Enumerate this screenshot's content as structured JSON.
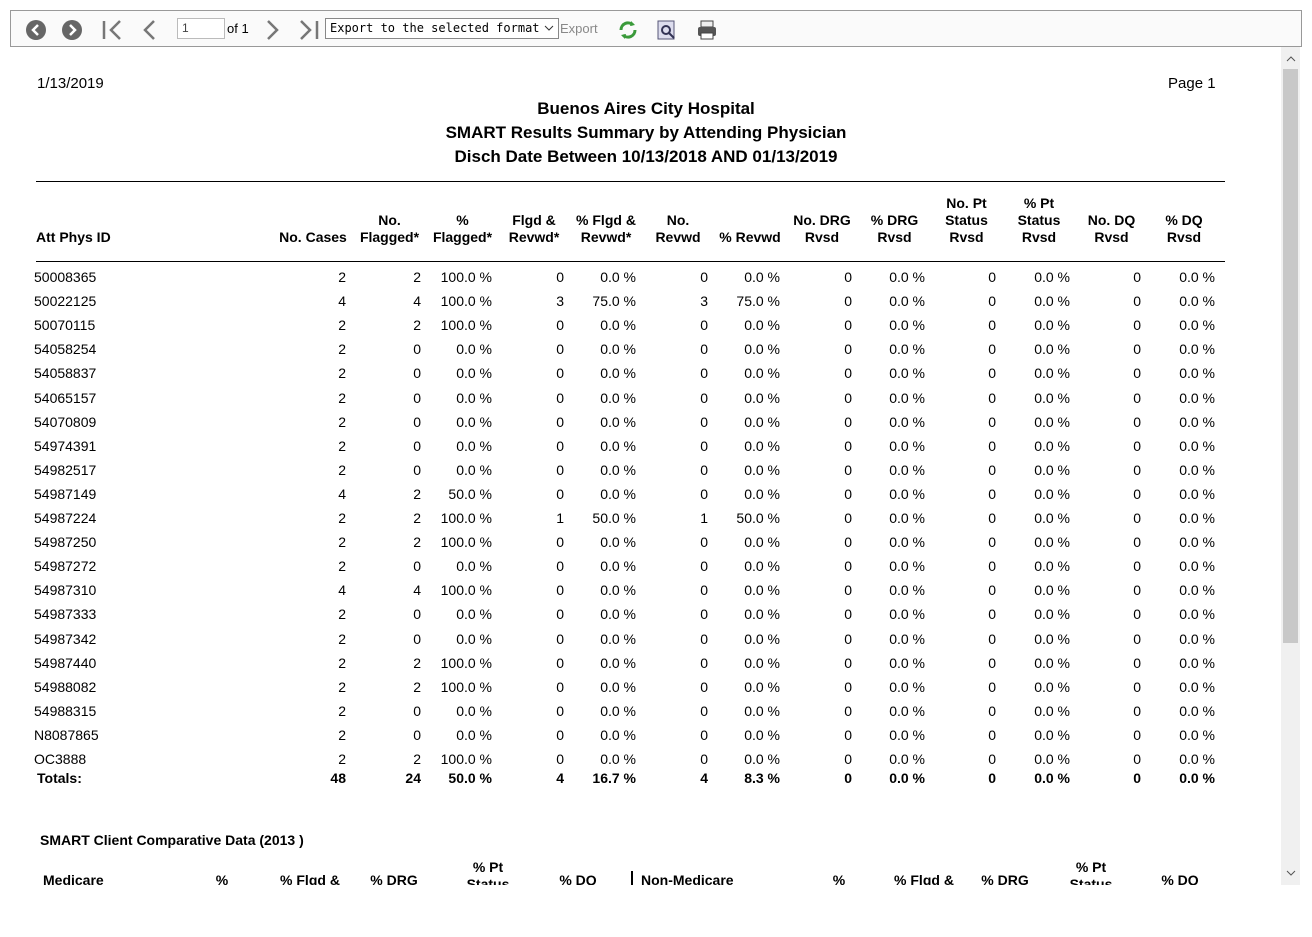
{
  "toolbar": {
    "page_input": "1",
    "of_label": "of 1",
    "export_select": "Export to the selected format",
    "export_button": "Export"
  },
  "report": {
    "date": "1/13/2019",
    "page": "Page 1",
    "title_lines": [
      "Buenos Aires City Hospital",
      "SMART Results Summary by Attending Physician",
      "Disch Date Between 10/13/2018 AND 01/13/2019"
    ],
    "columns": [
      "Att Phys ID",
      "No. Cases",
      "No.\nFlagged*",
      "%\nFlagged*",
      "Flgd &\nRevwd*",
      "% Flgd &\nRevwd*",
      "No.\nRevwd",
      "% Revwd",
      "No. DRG\nRvsd",
      "% DRG\nRvsd",
      "No. Pt\nStatus\nRvsd",
      "% Pt\nStatus\nRvsd",
      "No. DQ\nRvsd",
      "% DQ\nRvsd"
    ],
    "rows": [
      [
        "50008365",
        "2",
        "2",
        "100.0 %",
        "0",
        "0.0 %",
        "0",
        "0.0 %",
        "0",
        "0.0 %",
        "0",
        "0.0 %",
        "0",
        "0.0 %"
      ],
      [
        "50022125",
        "4",
        "4",
        "100.0 %",
        "3",
        "75.0 %",
        "3",
        "75.0 %",
        "0",
        "0.0 %",
        "0",
        "0.0 %",
        "0",
        "0.0 %"
      ],
      [
        "50070115",
        "2",
        "2",
        "100.0 %",
        "0",
        "0.0 %",
        "0",
        "0.0 %",
        "0",
        "0.0 %",
        "0",
        "0.0 %",
        "0",
        "0.0 %"
      ],
      [
        "54058254",
        "2",
        "0",
        "0.0 %",
        "0",
        "0.0 %",
        "0",
        "0.0 %",
        "0",
        "0.0 %",
        "0",
        "0.0 %",
        "0",
        "0.0 %"
      ],
      [
        "54058837",
        "2",
        "0",
        "0.0 %",
        "0",
        "0.0 %",
        "0",
        "0.0 %",
        "0",
        "0.0 %",
        "0",
        "0.0 %",
        "0",
        "0.0 %"
      ],
      [
        "54065157",
        "2",
        "0",
        "0.0 %",
        "0",
        "0.0 %",
        "0",
        "0.0 %",
        "0",
        "0.0 %",
        "0",
        "0.0 %",
        "0",
        "0.0 %"
      ],
      [
        "54070809",
        "2",
        "0",
        "0.0 %",
        "0",
        "0.0 %",
        "0",
        "0.0 %",
        "0",
        "0.0 %",
        "0",
        "0.0 %",
        "0",
        "0.0 %"
      ],
      [
        "54974391",
        "2",
        "0",
        "0.0 %",
        "0",
        "0.0 %",
        "0",
        "0.0 %",
        "0",
        "0.0 %",
        "0",
        "0.0 %",
        "0",
        "0.0 %"
      ],
      [
        "54982517",
        "2",
        "0",
        "0.0 %",
        "0",
        "0.0 %",
        "0",
        "0.0 %",
        "0",
        "0.0 %",
        "0",
        "0.0 %",
        "0",
        "0.0 %"
      ],
      [
        "54987149",
        "4",
        "2",
        "50.0 %",
        "0",
        "0.0 %",
        "0",
        "0.0 %",
        "0",
        "0.0 %",
        "0",
        "0.0 %",
        "0",
        "0.0 %"
      ],
      [
        "54987224",
        "2",
        "2",
        "100.0 %",
        "1",
        "50.0 %",
        "1",
        "50.0 %",
        "0",
        "0.0 %",
        "0",
        "0.0 %",
        "0",
        "0.0 %"
      ],
      [
        "54987250",
        "2",
        "2",
        "100.0 %",
        "0",
        "0.0 %",
        "0",
        "0.0 %",
        "0",
        "0.0 %",
        "0",
        "0.0 %",
        "0",
        "0.0 %"
      ],
      [
        "54987272",
        "2",
        "0",
        "0.0 %",
        "0",
        "0.0 %",
        "0",
        "0.0 %",
        "0",
        "0.0 %",
        "0",
        "0.0 %",
        "0",
        "0.0 %"
      ],
      [
        "54987310",
        "4",
        "4",
        "100.0 %",
        "0",
        "0.0 %",
        "0",
        "0.0 %",
        "0",
        "0.0 %",
        "0",
        "0.0 %",
        "0",
        "0.0 %"
      ],
      [
        "54987333",
        "2",
        "0",
        "0.0 %",
        "0",
        "0.0 %",
        "0",
        "0.0 %",
        "0",
        "0.0 %",
        "0",
        "0.0 %",
        "0",
        "0.0 %"
      ],
      [
        "54987342",
        "2",
        "0",
        "0.0 %",
        "0",
        "0.0 %",
        "0",
        "0.0 %",
        "0",
        "0.0 %",
        "0",
        "0.0 %",
        "0",
        "0.0 %"
      ],
      [
        "54987440",
        "2",
        "2",
        "100.0 %",
        "0",
        "0.0 %",
        "0",
        "0.0 %",
        "0",
        "0.0 %",
        "0",
        "0.0 %",
        "0",
        "0.0 %"
      ],
      [
        "54988082",
        "2",
        "2",
        "100.0 %",
        "0",
        "0.0 %",
        "0",
        "0.0 %",
        "0",
        "0.0 %",
        "0",
        "0.0 %",
        "0",
        "0.0 %"
      ],
      [
        "54988315",
        "2",
        "0",
        "0.0 %",
        "0",
        "0.0 %",
        "0",
        "0.0 %",
        "0",
        "0.0 %",
        "0",
        "0.0 %",
        "0",
        "0.0 %"
      ],
      [
        "N8087865",
        "2",
        "0",
        "0.0 %",
        "0",
        "0.0 %",
        "0",
        "0.0 %",
        "0",
        "0.0 %",
        "0",
        "0.0 %",
        "0",
        "0.0 %"
      ],
      [
        "OC3888",
        "2",
        "2",
        "100.0 %",
        "0",
        "0.0 %",
        "0",
        "0.0 %",
        "0",
        "0.0 %",
        "0",
        "0.0 %",
        "0",
        "0.0 %"
      ]
    ],
    "totals": [
      "Totals:",
      "48",
      "24",
      "50.0 %",
      "4",
      "16.7 %",
      "4",
      "8.3 %",
      "0",
      "0.0 %",
      "0",
      "0.0 %",
      "0",
      "0.0 %"
    ],
    "comparative": {
      "title": "SMART Client Comparative Data (2013 )",
      "headers": [
        "Medicare",
        "%",
        "% Flgd &",
        "% DRG",
        "% Pt\nStatus",
        "% DQ",
        "Non-Medicare",
        "%",
        "% Flgd &",
        "% DRG",
        "% Pt\nStatus",
        "% DQ"
      ]
    }
  }
}
